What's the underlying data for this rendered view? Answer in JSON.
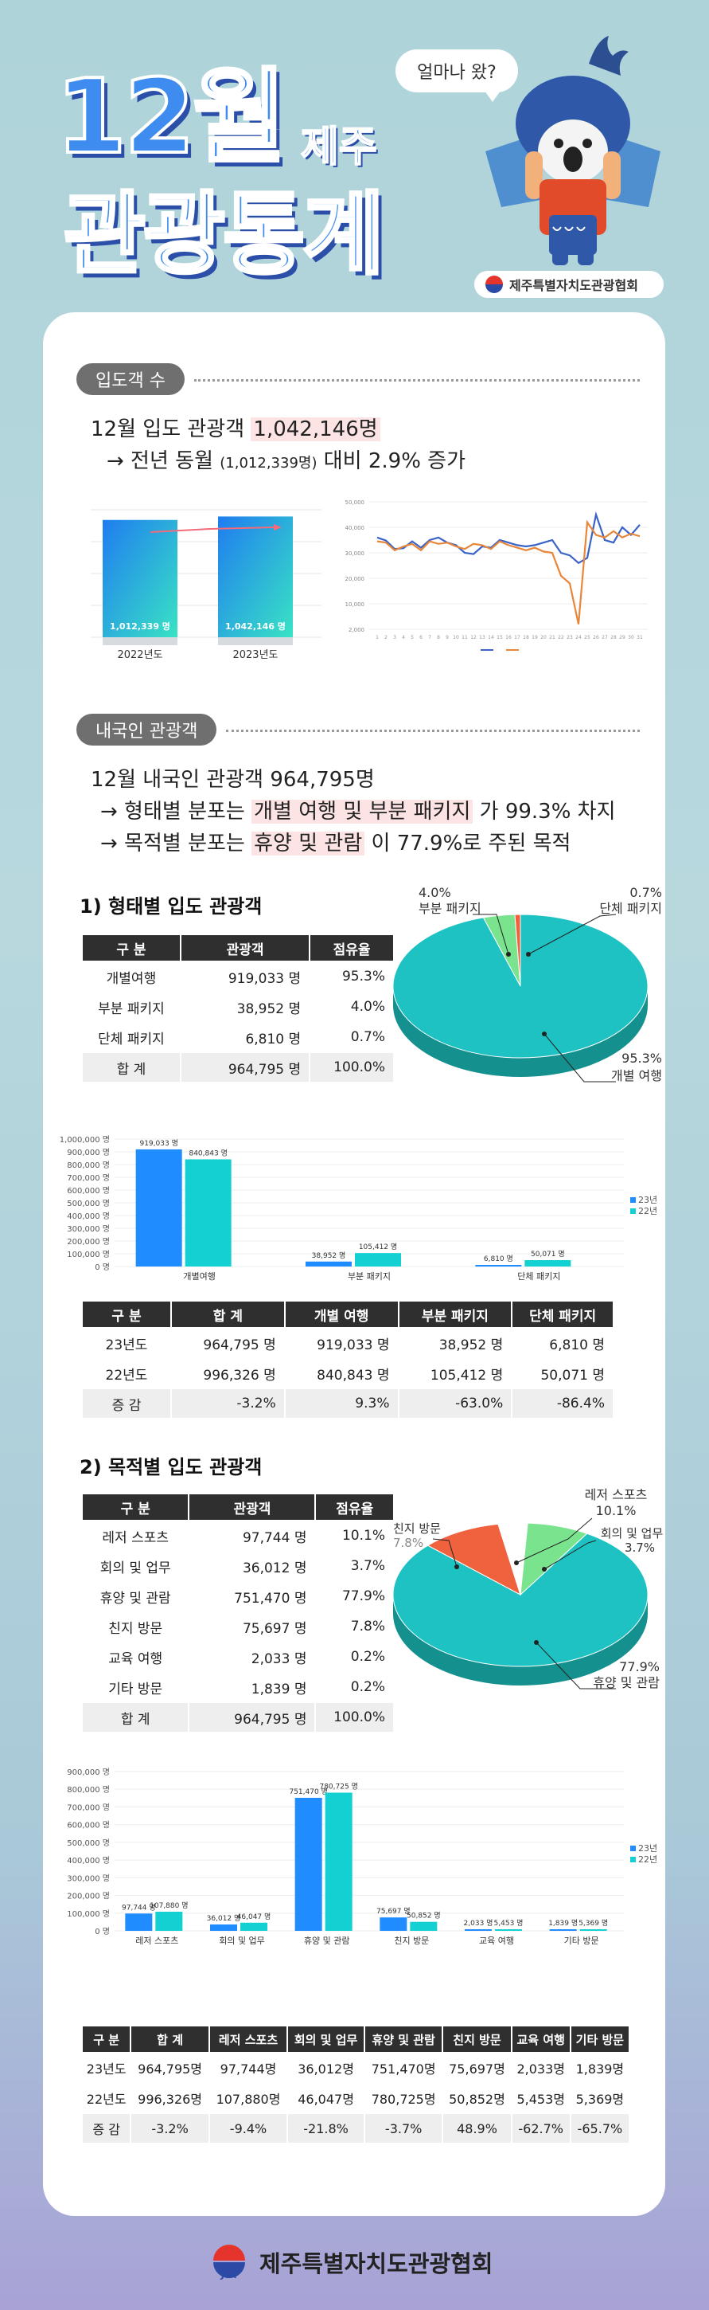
{
  "header": {
    "title_line1": "12월",
    "title_small": "제주",
    "title_line2": "관광통계",
    "bubble": "얼마나 왔?",
    "org": "제주특별자치도관광협회"
  },
  "sec1": {
    "pill": "입도객 수",
    "line1_pre": "12월 입도 관광객 ",
    "line1_hl": "1,042,146명",
    "line2_pre": "→ 전년 동월 ",
    "line2_paren": "(1,012,339명)",
    "line2_post": " 대비 2.9% 증가",
    "bar_compare": {
      "categories": [
        "2022년도",
        "2023년도"
      ],
      "values": [
        1012339,
        1042146
      ],
      "value_labels": [
        "1,012,339 명",
        "1,042,146 명"
      ]
    }
  },
  "sec2": {
    "pill": "내국인 관광객",
    "line1": "12월 내국인 관광객 964,795명",
    "line2_pre": "→ 형태별 분포는 ",
    "line2_hl": "개별 여행 및 부분 패키지",
    "line2_post": " 가 99.3% 차지",
    "line3_pre": "→ 목적별 분포는 ",
    "line3_hl": "휴양 및 관람",
    "line3_post": " 이 77.9%로 주된 목적"
  },
  "type_section": {
    "heading": "1) 형태별 입도 관광객",
    "table": {
      "headers": [
        "구 분",
        "관광객",
        "점유율"
      ],
      "rows": [
        [
          "개별여행",
          "919,033 명",
          "95.3%"
        ],
        [
          "부분 패키지",
          "38,952 명",
          "4.0%"
        ],
        [
          "단체 패키지",
          "6,810 명",
          "0.7%"
        ],
        [
          "합 계",
          "964,795 명",
          "100.0%"
        ]
      ]
    },
    "pie": {
      "labels": [
        {
          "pct": "95.3%",
          "name": "개별 여행"
        },
        {
          "pct": "4.0%",
          "name": "부분 패키지"
        },
        {
          "pct": "0.7%",
          "name": "단체 패키지"
        }
      ]
    },
    "compare_table": {
      "headers": [
        "구 분",
        "합 계",
        "개별 여행",
        "부분 패키지",
        "단체 패키지"
      ],
      "rows": [
        [
          "23년도",
          "964,795 명",
          "919,033 명",
          "38,952 명",
          "6,810 명"
        ],
        [
          "22년도",
          "996,326 명",
          "840,843 명",
          "105,412 명",
          "50,071 명"
        ],
        [
          "증 감",
          "-3.2%",
          "9.3%",
          "-63.0%",
          "-86.4%"
        ]
      ]
    }
  },
  "purpose_section": {
    "heading": "2) 목적별 입도 관광객",
    "table": {
      "headers": [
        "구 분",
        "관광객",
        "점유율"
      ],
      "rows": [
        [
          "레저 스포츠",
          "97,744 명",
          "10.1%"
        ],
        [
          "회의 및 업무",
          "36,012 명",
          "3.7%"
        ],
        [
          "휴양 및 관람",
          "751,470 명",
          "77.9%"
        ],
        [
          "친지 방문",
          "75,697 명",
          "7.8%"
        ],
        [
          "교육 여행",
          "2,033 명",
          "0.2%"
        ],
        [
          "기타 방문",
          "1,839 명",
          "0.2%"
        ],
        [
          "합 계",
          "964,795 명",
          "100.0%"
        ]
      ]
    },
    "pie": {
      "labels": [
        {
          "name": "레저 스포츠",
          "pct": "10.1%"
        },
        {
          "name": "회의 및 업무",
          "pct": "3.7%"
        },
        {
          "name": "친지 방문",
          "pct": "7.8%"
        },
        {
          "pct": "77.9%",
          "name": "휴양 및 관람"
        }
      ]
    },
    "compare_table": {
      "headers": [
        "구 분",
        "합 계",
        "레저 스포츠",
        "회의 및 업무",
        "휴양 및 관람",
        "친지 방문",
        "교육 여행",
        "기타 방문"
      ],
      "rows": [
        [
          "23년도",
          "964,795명",
          "97,744명",
          "36,012명",
          "751,470명",
          "75,697명",
          "2,033명",
          "1,839명"
        ],
        [
          "22년도",
          "996,326명",
          "107,880명",
          "46,047명",
          "780,725명",
          "50,852명",
          "5,453명",
          "5,369명"
        ],
        [
          "증 감",
          "-3.2%",
          "-9.4%",
          "-21.8%",
          "-3.7%",
          "48.9%",
          "-62.7%",
          "-65.7%"
        ]
      ]
    }
  },
  "footer": {
    "org": "제주특별자치도관광협회",
    "mark": "JTA"
  },
  "chart_data": [
    {
      "type": "bar",
      "categories": [
        "2022년도",
        "2023년도"
      ],
      "values": [
        1012339,
        1042146
      ],
      "data_labels": [
        "1,012,339 명",
        "1,042,146 명"
      ]
    },
    {
      "type": "line",
      "x": [
        1,
        2,
        3,
        4,
        5,
        6,
        7,
        8,
        9,
        10,
        11,
        12,
        13,
        14,
        15,
        16,
        17,
        18,
        19,
        20,
        21,
        22,
        23,
        24,
        25,
        26,
        27,
        28,
        29,
        30,
        31
      ],
      "y_ticks": [
        "2,000",
        "10,000",
        "20,000",
        "30,000",
        "40,000",
        "50,000"
      ],
      "ylim": [
        0,
        50000
      ],
      "series": [
        {
          "color": "#3a63c8",
          "values": [
            36000,
            34800,
            31500,
            31800,
            34500,
            32000,
            35000,
            36000,
            34000,
            33000,
            30000,
            29500,
            32500,
            32000,
            35000,
            34000,
            33000,
            32500,
            33000,
            34000,
            35000,
            30000,
            29000,
            26000,
            28000,
            45000,
            35000,
            34000,
            40000,
            37000,
            41000
          ]
        },
        {
          "color": "#e8863a",
          "values": [
            34500,
            34000,
            31000,
            32500,
            33500,
            31000,
            34500,
            33500,
            34000,
            32500,
            31500,
            33500,
            33000,
            31500,
            34500,
            33000,
            32000,
            31000,
            32000,
            30500,
            30000,
            21000,
            18000,
            2000,
            42000,
            37000,
            36000,
            38500,
            36000,
            37500,
            36500
          ]
        }
      ]
    },
    {
      "type": "pie",
      "categories": [
        "개별 여행",
        "부분 패키지",
        "단체 패키지"
      ],
      "values": [
        95.3,
        4.0,
        0.7
      ],
      "colors": [
        "#1fc2c2",
        "#79e38e",
        "#f0623e"
      ]
    },
    {
      "type": "bar",
      "categories": [
        "개별여행",
        "부분 패키지",
        "단체 패키지"
      ],
      "series": [
        {
          "name": "23년",
          "values": [
            919033,
            38952,
            6810
          ],
          "color": "#1f8cff"
        },
        {
          "name": "22년",
          "values": [
            840843,
            105412,
            50071
          ],
          "color": "#13d0d3"
        }
      ],
      "data_labels": [
        [
          "919,033 명",
          "38,952 명",
          "6,810 명"
        ],
        [
          "840,843 명",
          "105,412 명",
          "50,071 명"
        ]
      ],
      "y_ticks": [
        "0 명",
        "100,000 명",
        "200,000 명",
        "300,000 명",
        "400,000 명",
        "500,000 명",
        "600,000 명",
        "700,000 명",
        "800,000 명",
        "900,000 명",
        "1,000,000 명"
      ],
      "ylim": [
        0,
        1000000
      ],
      "legend": "right"
    },
    {
      "type": "pie",
      "categories": [
        "휴양 및 관람",
        "레저 스포츠",
        "회의 및 업무",
        "친지 방문"
      ],
      "values": [
        77.9,
        10.1,
        3.7,
        7.8
      ],
      "colors": [
        "#1fc2c2",
        "#f0623e",
        "#ffffff",
        "#79e38e"
      ]
    },
    {
      "type": "bar",
      "categories": [
        "레저 스포츠",
        "회의 및 업무",
        "휴양 및 관람",
        "친지 방문",
        "교육 여행",
        "기타 방문"
      ],
      "series": [
        {
          "name": "23년",
          "values": [
            97744,
            36012,
            751470,
            75697,
            2033,
            1839
          ],
          "color": "#1f8cff"
        },
        {
          "name": "22년",
          "values": [
            107880,
            46047,
            780725,
            50852,
            5453,
            5369
          ],
          "color": "#13d0d3"
        }
      ],
      "data_labels": [
        [
          "97,744 명",
          "36,012 명",
          "751,470 명",
          "75,697 명",
          "2,033 명",
          "1,839 명"
        ],
        [
          "107,880 명",
          "46,047 명",
          "780,725 명",
          "50,852 명",
          "5,453 명",
          "5,369 명"
        ]
      ],
      "y_ticks": [
        "0 명",
        "100,000 명",
        "200,000 명",
        "300,000 명",
        "400,000 명",
        "500,000 명",
        "600,000 명",
        "700,000 명",
        "800,000 명",
        "900,000 명"
      ],
      "ylim": [
        0,
        900000
      ],
      "legend": "right"
    }
  ]
}
